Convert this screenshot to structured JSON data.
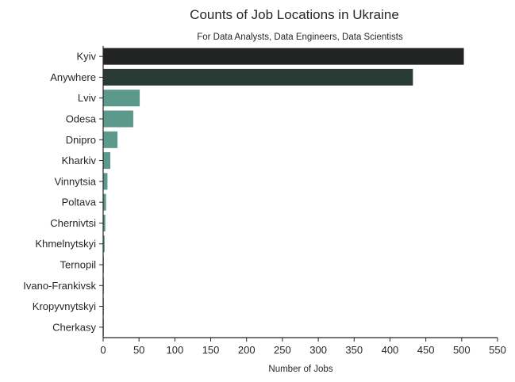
{
  "chart_data": {
    "type": "bar",
    "orientation": "horizontal",
    "title": "Counts of Job Locations in Ukraine",
    "subtitle": "For Data Analysts, Data Engineers, Data Scientists",
    "xlabel": "Number of Jobs",
    "ylabel": "",
    "xlim": [
      0,
      550
    ],
    "xticks": [
      0,
      50,
      100,
      150,
      200,
      250,
      300,
      350,
      400,
      450,
      500,
      550
    ],
    "grid": false,
    "palette": "dark teal gradient (darker = higher count)",
    "categories": [
      "Kyiv",
      "Anywhere",
      "Lviv",
      "Odesa",
      "Dnipro",
      "Kharkiv",
      "Vinnytsia",
      "Poltava",
      "Chernivtsi",
      "Khmelnytskyi",
      "Ternopil",
      "Ivano-Frankivsk",
      "Kropyvnytskyi",
      "Cherkasy"
    ],
    "values": [
      503,
      432,
      51,
      42,
      20,
      10,
      6,
      4,
      3,
      2,
      1,
      1,
      1,
      1
    ],
    "colors": [
      "#222423",
      "#2a3a35",
      "#5a998c",
      "#5a998c",
      "#5a998c",
      "#5a998c",
      "#5a998c",
      "#5a998c",
      "#5a998c",
      "#5a998c",
      "#5a998c",
      "#5a998c",
      "#5a998c",
      "#5a998c"
    ]
  }
}
